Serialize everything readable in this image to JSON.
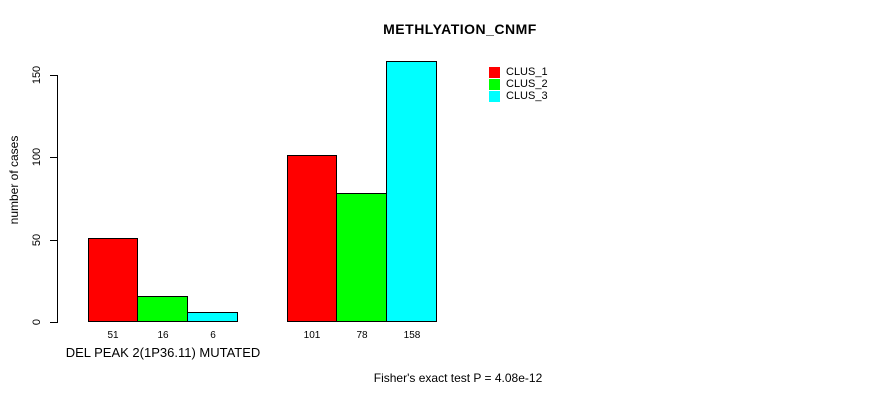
{
  "chart_data": {
    "type": "bar",
    "title": "METHLYATION_CNMF",
    "ylabel": "number of cases",
    "xlabel": "",
    "ylim": [
      0,
      150
    ],
    "yticks": [
      0,
      50,
      100,
      150
    ],
    "categories": [
      "DEL PEAK  2(1P36.11) MUTATED",
      ""
    ],
    "series": [
      {
        "name": "CLUS_1",
        "color": "#ff0000",
        "values": [
          51,
          101
        ]
      },
      {
        "name": "CLUS_2",
        "color": "#00ff00",
        "values": [
          16,
          78
        ]
      },
      {
        "name": "CLUS_3",
        "color": "#00ffff",
        "values": [
          6,
          158
        ]
      }
    ],
    "bar_border_color": "#000000",
    "grid": false,
    "legend_position": "top-right",
    "annotation": "Fisher's exact test P = 4.08e-12"
  }
}
